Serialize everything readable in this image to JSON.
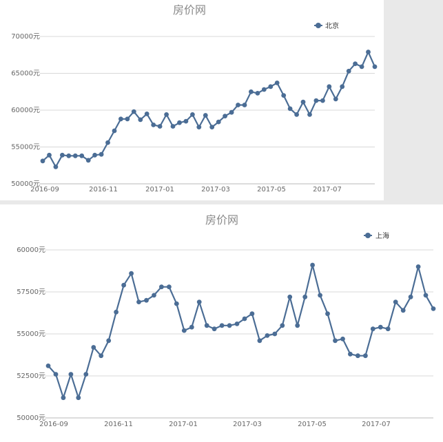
{
  "chart_data": [
    {
      "type": "line",
      "title": "房价网",
      "series": [
        {
          "name": "北京",
          "values": [
            53100,
            53900,
            52300,
            53900,
            53800,
            53800,
            53800,
            53200,
            53900,
            54000,
            55600,
            57200,
            58800,
            58800,
            59800,
            58700,
            59500,
            58000,
            57800,
            59400,
            57800,
            58300,
            58500,
            59400,
            57700,
            59300,
            57700,
            58400,
            59200,
            59700,
            60700,
            60700,
            62500,
            62300,
            62800,
            63200,
            63700,
            62000,
            60200,
            59400,
            61100,
            59400,
            61300,
            61300,
            63200,
            61500,
            63200,
            65300,
            66300,
            65900,
            67900,
            65900
          ]
        }
      ],
      "ylim": [
        50000,
        70000
      ],
      "y_ticks": [
        "50000元",
        "55000元",
        "60000元",
        "65000元",
        "70000元"
      ],
      "x_ticks": [
        "2016-09",
        "2016-11",
        "2017-01",
        "2017-03",
        "2017-05",
        "2017-07"
      ],
      "legend_position": "top-right",
      "grid": true,
      "color": "#4b6d95"
    },
    {
      "type": "line",
      "title": "房价网",
      "series": [
        {
          "name": "上海",
          "values": [
            53100,
            52600,
            51200,
            52600,
            51200,
            52600,
            54200,
            53700,
            54600,
            56300,
            57900,
            58600,
            56900,
            57000,
            57300,
            57800,
            57800,
            56800,
            55200,
            55400,
            56900,
            55500,
            55300,
            55500,
            55500,
            55600,
            55900,
            56200,
            54600,
            54900,
            55000,
            55500,
            57200,
            55500,
            57200,
            59100,
            57300,
            56200,
            54600,
            54700,
            53800,
            53700,
            53700,
            55300,
            55400,
            55300,
            56900,
            56400,
            57200,
            59000,
            57300,
            56500
          ]
        }
      ],
      "ylim": [
        50000,
        60000
      ],
      "y_ticks": [
        "50000元",
        "52500元",
        "55000元",
        "57500元",
        "60000元"
      ],
      "x_ticks": [
        "2016-09",
        "2016-11",
        "2017-01",
        "2017-03",
        "2017-05",
        "2017-07"
      ],
      "legend_position": "top-right",
      "grid": true,
      "color": "#4b6d95"
    }
  ]
}
